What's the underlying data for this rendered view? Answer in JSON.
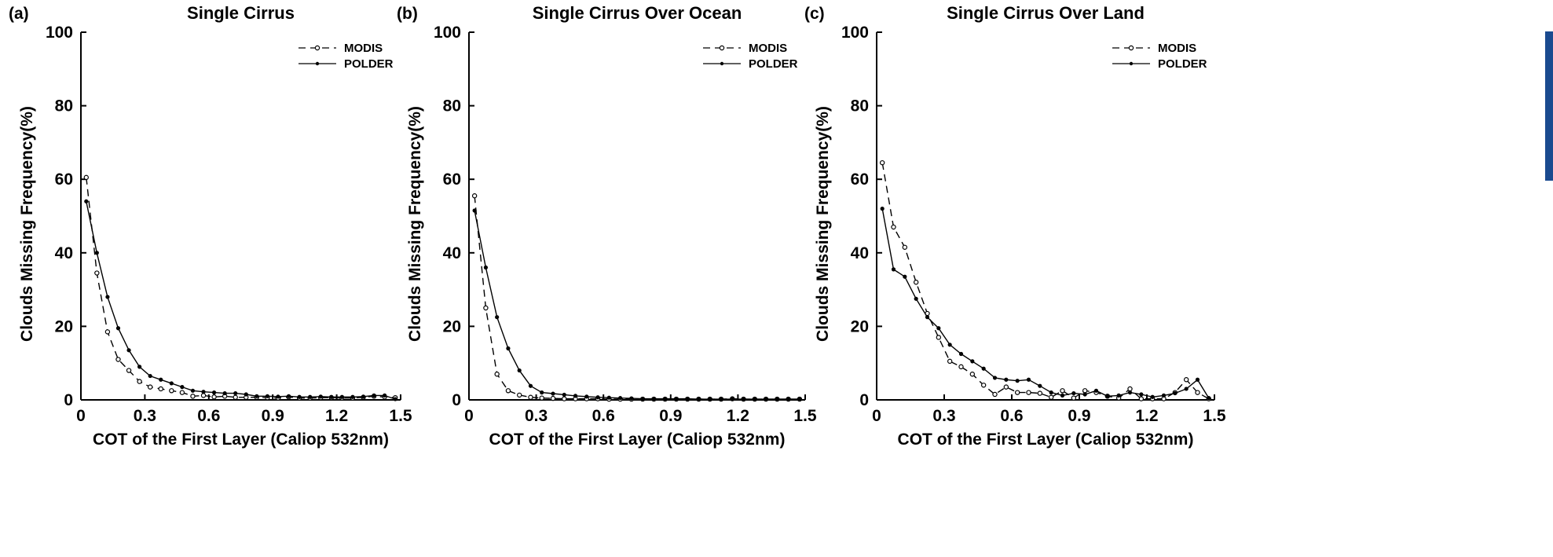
{
  "accent_strip_color": "#1a4a8f",
  "chart_data": [
    {
      "type": "line",
      "panel": "(a)",
      "title": "Single Cirrus",
      "xlabel": "COT of the First Layer (Caliop 532nm)",
      "ylabel": "Clouds Missing Frequency(%)",
      "xlim": [
        0,
        1.5
      ],
      "ylim": [
        0,
        100
      ],
      "xticks": [
        "0",
        "0.3",
        "0.6",
        "0.9",
        "1.2",
        "1.5"
      ],
      "yticks": [
        "0",
        "20",
        "40",
        "60",
        "80",
        "100"
      ],
      "grid": false,
      "legend_position": "top-right",
      "x": [
        0.025,
        0.075,
        0.125,
        0.175,
        0.225,
        0.275,
        0.325,
        0.375,
        0.425,
        0.475,
        0.525,
        0.575,
        0.625,
        0.675,
        0.725,
        0.775,
        0.825,
        0.875,
        0.925,
        0.975,
        1.025,
        1.075,
        1.125,
        1.175,
        1.225,
        1.275,
        1.325,
        1.375,
        1.425,
        1.475
      ],
      "series": [
        {
          "name": "MODIS",
          "style": "dashed",
          "marker": "open-circle",
          "values": [
            60.5,
            34.5,
            18.5,
            11,
            8,
            5,
            3.5,
            3,
            2.5,
            2,
            1,
            1.2,
            0.8,
            1,
            0.7,
            0.7,
            0.7,
            0.6,
            0.5,
            0.8,
            0.5,
            0.5,
            0.6,
            0.6,
            0.5,
            0.5,
            0.7,
            1,
            0.8,
            0.6
          ]
        },
        {
          "name": "POLDER",
          "style": "solid",
          "marker": "filled-dot",
          "values": [
            54,
            40,
            28,
            19.5,
            13.5,
            9,
            6.5,
            5.5,
            4.5,
            3.5,
            2.5,
            2.2,
            2,
            1.8,
            1.8,
            1.5,
            1,
            1,
            0.9,
            1,
            0.8,
            0.8,
            0.9,
            0.8,
            0.8,
            0.8,
            0.9,
            1.2,
            1.2,
            0.2
          ]
        }
      ]
    },
    {
      "type": "line",
      "panel": "(b)",
      "title": "Single Cirrus Over Ocean",
      "xlabel": "COT of the First Layer (Caliop 532nm)",
      "ylabel": "Clouds Missing Frequency(%)",
      "xlim": [
        0,
        1.5
      ],
      "ylim": [
        0,
        100
      ],
      "xticks": [
        "0",
        "0.3",
        "0.6",
        "0.9",
        "1.2",
        "1.5"
      ],
      "yticks": [
        "0",
        "20",
        "40",
        "60",
        "80",
        "100"
      ],
      "grid": false,
      "legend_position": "top-right",
      "x": [
        0.025,
        0.075,
        0.125,
        0.175,
        0.225,
        0.275,
        0.325,
        0.375,
        0.425,
        0.475,
        0.525,
        0.575,
        0.625,
        0.675,
        0.725,
        0.775,
        0.825,
        0.875,
        0.925,
        0.975,
        1.025,
        1.075,
        1.125,
        1.175,
        1.225,
        1.275,
        1.325,
        1.375,
        1.425,
        1.475
      ],
      "series": [
        {
          "name": "MODIS",
          "style": "dashed",
          "marker": "open-circle",
          "values": [
            55.5,
            25,
            7,
            2.5,
            1.3,
            0.7,
            0.5,
            0.4,
            0.3,
            0.3,
            0.3,
            0.3,
            0.2,
            0.2,
            0.2,
            0.2,
            0.2,
            0.2,
            0.2,
            0.2,
            0.2,
            0.2,
            0.2,
            0.3,
            0.2,
            0.2,
            0.2,
            0.2,
            0.2,
            0.2
          ]
        },
        {
          "name": "POLDER",
          "style": "solid",
          "marker": "filled-dot",
          "values": [
            51.5,
            36,
            22.5,
            14,
            8,
            3.8,
            2,
            1.7,
            1.4,
            1.1,
            0.9,
            0.7,
            0.6,
            0.5,
            0.4,
            0.3,
            0.3,
            0.3,
            0.3,
            0.3,
            0.2,
            0.2,
            0.2,
            0.2,
            0.2,
            0.2,
            0.2,
            0.2,
            0.2,
            0.2
          ]
        }
      ]
    },
    {
      "type": "line",
      "panel": "(c)",
      "title": "Single Cirrus Over Land",
      "xlabel": "COT of the First Layer (Caliop 532nm)",
      "ylabel": "Clouds Missing Frequency(%)",
      "xlim": [
        0,
        1.5
      ],
      "ylim": [
        0,
        100
      ],
      "xticks": [
        "0",
        "0.3",
        "0.6",
        "0.9",
        "1.2",
        "1.5"
      ],
      "yticks": [
        "0",
        "20",
        "40",
        "60",
        "80",
        "100"
      ],
      "grid": false,
      "legend_position": "top-right",
      "x": [
        0.025,
        0.075,
        0.125,
        0.175,
        0.225,
        0.275,
        0.325,
        0.375,
        0.425,
        0.475,
        0.525,
        0.575,
        0.625,
        0.675,
        0.725,
        0.775,
        0.825,
        0.875,
        0.925,
        0.975,
        1.025,
        1.075,
        1.125,
        1.175,
        1.225,
        1.275,
        1.325,
        1.375,
        1.425,
        1.475
      ],
      "series": [
        {
          "name": "MODIS",
          "style": "dashed",
          "marker": "open-circle",
          "values": [
            64.5,
            47,
            41.5,
            32,
            23.5,
            17,
            10.5,
            9,
            7,
            4,
            1.5,
            3.5,
            2,
            2,
            1.8,
            0.7,
            2.5,
            0.5,
            2.5,
            2,
            1,
            0.5,
            3,
            0.3,
            0.3,
            0.3,
            2,
            5.5,
            2,
            0.3
          ]
        },
        {
          "name": "POLDER",
          "style": "solid",
          "marker": "filled-dot",
          "values": [
            52,
            35.5,
            33.5,
            27.5,
            22.5,
            19.5,
            15,
            12.5,
            10.5,
            8.5,
            6,
            5.5,
            5.2,
            5.5,
            3.8,
            2,
            1.2,
            1.8,
            1.5,
            2.5,
            1,
            1.2,
            2,
            1.5,
            0.8,
            1.2,
            1.8,
            3,
            5.5,
            0.5
          ]
        }
      ]
    }
  ]
}
